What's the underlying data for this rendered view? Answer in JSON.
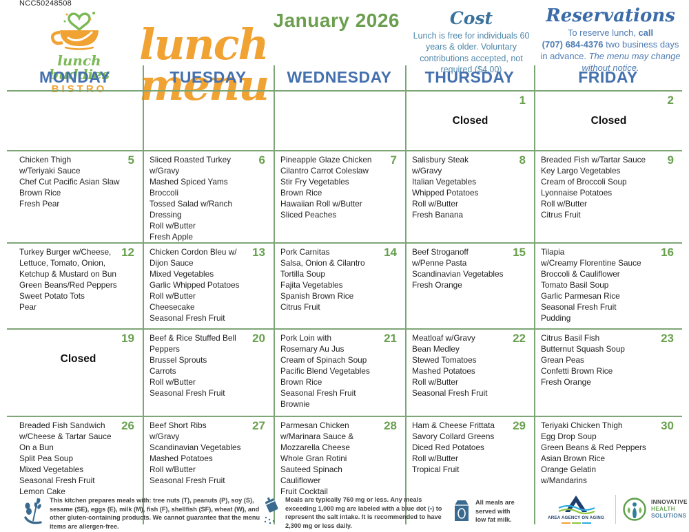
{
  "code": "NCC50248508",
  "brand": {
    "line1": "lunch buddies",
    "line2": "BISTRO"
  },
  "title": {
    "month": "January 2026",
    "script": "lunch menu"
  },
  "cost": {
    "heading": "Cost",
    "body": "Lunch is free for individuals 60 years & older. Voluntary contributions accepted, not required ($4.00)"
  },
  "reservations": {
    "heading": "Reservations",
    "pre": "To reserve lunch, ",
    "bold1": "call",
    "phone": "(707) 684-4376",
    "mid": " two business days in advance. ",
    "notice": "The menu may change without notice."
  },
  "weekdays": [
    "MONDAY",
    "TUESDAY",
    "WEDNESDAY",
    "THURSDAY",
    "FRIDAY"
  ],
  "closed_label": "Closed",
  "weeks": [
    [
      {},
      {},
      {},
      {
        "day": "1",
        "closed": true
      },
      {
        "day": "2",
        "closed": true
      }
    ],
    [
      {
        "day": "5",
        "lines": [
          "Chicken Thigh",
          "w/Teriyaki Sauce",
          "Chef Cut Pacific Asian Slaw",
          "Brown Rice",
          "Fresh Pear"
        ]
      },
      {
        "day": "6",
        "lines": [
          "Sliced Roasted Turkey",
          "w/Gravy",
          "Mashed Spiced Yams",
          "Broccoli",
          "Tossed Salad w/Ranch",
          "Dressing",
          "Roll w/Butter",
          "Fresh Apple"
        ]
      },
      {
        "day": "7",
        "lines": [
          "Pineapple Glaze Chicken",
          "Cilantro Carrot Coleslaw",
          "Stir Fry Vegetables",
          "Brown Rice",
          "Hawaiian Roll w/Butter",
          "Sliced Peaches"
        ]
      },
      {
        "day": "8",
        "lines": [
          "Salisbury Steak",
          "w/Gravy",
          "Italian Vegetables",
          "Whipped Potatoes",
          "Roll w/Butter",
          "Fresh Banana"
        ]
      },
      {
        "day": "9",
        "lines": [
          "Breaded Fish w/Tartar Sauce",
          "Key Largo Vegetables",
          "Cream of Broccoli Soup",
          "Lyonnaise Potatoes",
          "Roll w/Butter",
          "Citrus Fruit"
        ]
      }
    ],
    [
      {
        "day": "12",
        "lines": [
          "Turkey Burger w/Cheese,",
          "Lettuce, Tomato, Onion,",
          "Ketchup & Mustard on Bun",
          "Green Beans/Red Peppers",
          "Sweet Potato Tots",
          "Pear"
        ]
      },
      {
        "day": "13",
        "lines": [
          "Chicken Cordon Bleu w/",
          "Dijon Sauce",
          "Mixed Vegetables",
          "Garlic Whipped Potatoes",
          "Roll w/Butter",
          "Cheesecake",
          "Seasonal Fresh Fruit"
        ]
      },
      {
        "day": "14",
        "lines": [
          "Pork Carnitas",
          "Salsa, Onion & Cilantro",
          "Tortilla Soup",
          "Fajita Vegetables",
          "Spanish Brown Rice",
          "Citrus Fruit"
        ]
      },
      {
        "day": "15",
        "lines": [
          "Beef Stroganoff",
          "w/Penne Pasta",
          "Scandinavian Vegetables",
          "Fresh Orange"
        ]
      },
      {
        "day": "16",
        "lines": [
          "Tilapia",
          "w/Creamy Florentine Sauce",
          "Broccoli & Cauliflower",
          "Tomato Basil Soup",
          "Garlic Parmesan Rice",
          "Seasonal Fresh Fruit",
          "Pudding"
        ]
      }
    ],
    [
      {
        "day": "19",
        "closed": true
      },
      {
        "day": "20",
        "lines": [
          "Beef & Rice Stuffed Bell",
          "Peppers",
          "Brussel Sprouts",
          "Carrots",
          "Roll w/Butter",
          "Seasonal Fresh Fruit"
        ]
      },
      {
        "day": "21",
        "lines": [
          "Pork Loin with",
          "Rosemary Au Jus",
          "Cream of Spinach Soup",
          "Pacific Blend Vegetables",
          "Brown Rice",
          "Seasonal Fresh Fruit",
          "Brownie"
        ]
      },
      {
        "day": "22",
        "lines": [
          "Meatloaf w/Gravy",
          "Bean Medley",
          "Stewed Tomatoes",
          "Mashed Potatoes",
          "Roll w/Butter",
          "Seasonal Fresh Fruit"
        ]
      },
      {
        "day": "23",
        "lines": [
          "Citrus Basil Fish",
          "Butternut Squash Soup",
          "Grean Peas",
          "Confetti Brown Rice",
          "Fresh Orange"
        ]
      }
    ],
    [
      {
        "day": "26",
        "lines": [
          "Breaded Fish Sandwich",
          "w/Cheese & Tartar Sauce",
          "On a Bun",
          "Split Pea Soup",
          "Mixed Vegetables",
          "Seasonal Fresh Fruit",
          "Lemon Cake"
        ]
      },
      {
        "day": "27",
        "lines": [
          "Beef Short Ribs",
          "w/Gravy",
          "Scandinavian Vegetables",
          "Mashed Potatoes",
          "Roll w/Butter",
          "Seasonal Fresh Fruit"
        ]
      },
      {
        "day": "28",
        "lines": [
          "Parmesan Chicken",
          "w/Marinara Sauce &",
          "Mozzarella Cheese",
          "Whole Gran Rotini",
          "Sauteed Spinach",
          "Cauliflower",
          "Fruit Cocktail"
        ]
      },
      {
        "day": "29",
        "lines": [
          "Ham & Cheese Frittata",
          "Savory Collard Greens",
          "Diced Red Potatoes",
          "Roll w/Butter",
          "Tropical Fruit"
        ]
      },
      {
        "day": "30",
        "lines": [
          "Teriyaki Chicken Thigh",
          "Egg Drop Soup",
          "Green Beans & Red Peppers",
          "Asian Brown Rice",
          "Orange Gelatin",
          "w/Mandarins"
        ]
      }
    ]
  ],
  "footer": {
    "allergen_note": "This kitchen prepares meals with: tree nuts (T), peanuts (P), soy (S), sesame (SE), eggs (E), milk (M), fish (F), shellfish (SF), wheat (W), and other gluten-containing products. We cannot guarantee that the menu items are allergen-free.",
    "sodium": {
      "s1": "Meals are typically 760 mg or less. Any meals exceeding 1,000 mg are labeled with a blue dot (",
      "dot": "•",
      "s2": ") to represent the salt intake. It is recommended to have 2,300 mg or less daily."
    },
    "milk_note": "All meals are served with low fat milk.",
    "area_agency": "AREA AGENCY ON AGING",
    "ihs": [
      "INNOVATIVE",
      "HEALTH",
      "SOLUTIONS"
    ]
  },
  "colors": {
    "orange": "#f0a232",
    "brand_green": "#7bb956",
    "green": "#6b9e4e",
    "green_num": "#68a04e",
    "line": "#7da576",
    "day_blue": "#4470ae",
    "cost_head": "#3a729c",
    "cost_body": "#4e87aa",
    "res_head": "#3b6ba8",
    "res_body": "#4e7cb4",
    "ink": "#1f1f1f",
    "footer_ink": "#424242",
    "icon_blue": "#3a6b8f"
  }
}
